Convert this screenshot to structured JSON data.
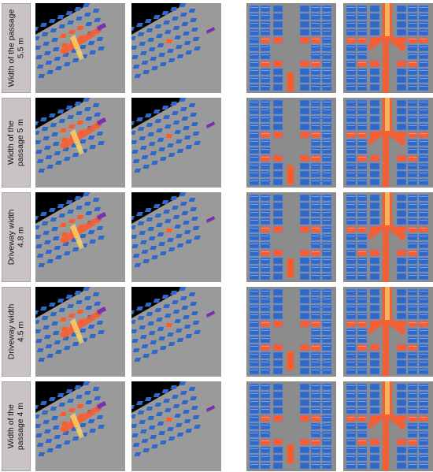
{
  "rows": [
    {
      "label": "Width of the passage\n5.5 m"
    },
    {
      "label": "Width of the\npassage 5 m"
    },
    {
      "label": "Driveway width\n4.8 m"
    },
    {
      "label": "Driveway width\n4.5 m"
    },
    {
      "label": "Width of the\npassage 4 m"
    }
  ],
  "panels": [
    {
      "name": "perspective-flow-view",
      "background": "#000000"
    },
    {
      "name": "perspective-parking-view",
      "background": "#000000"
    },
    {
      "name": "top-parking-view",
      "background": "#8c8c8c"
    },
    {
      "name": "top-flow-view",
      "background": "#8c8c8c"
    }
  ],
  "colors": {
    "car_blue": "#2f68c8",
    "car_highlight": "#ff5a2a",
    "flow_yellow": "#ffd36a",
    "flow_purple": "#7b2fb0",
    "ground": "#8c8c8c"
  }
}
